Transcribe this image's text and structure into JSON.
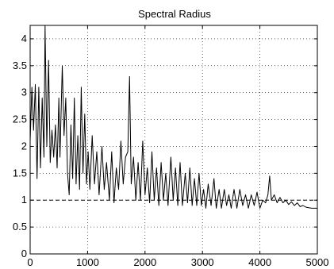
{
  "chart_data": {
    "type": "line",
    "title": "Spectral Radius",
    "xlabel": "",
    "ylabel": "",
    "xlim": [
      0,
      5000
    ],
    "ylim": [
      0,
      4.25
    ],
    "x_ticks": [
      0,
      1000,
      2000,
      3000,
      4000,
      5000
    ],
    "x_tick_labels": [
      "0",
      "1000",
      "2000",
      "3000",
      "4000",
      "5000"
    ],
    "y_ticks": [
      0,
      0.5,
      1,
      1.5,
      2,
      2.5,
      3,
      3.5,
      4
    ],
    "y_tick_labels": [
      "0",
      "0.5",
      "1",
      "1.5",
      "2",
      "2.5",
      "3",
      "3.5",
      "4"
    ],
    "grid": true,
    "grid_style": "dotted",
    "reference_line": {
      "y": 1,
      "style": "dashed",
      "color": "#000000"
    },
    "series": [
      {
        "color": "#000000",
        "points": [
          [
            0,
            2.1
          ],
          [
            30,
            3.1
          ],
          [
            60,
            2.3
          ],
          [
            90,
            3.15
          ],
          [
            120,
            1.4
          ],
          [
            150,
            3.1
          ],
          [
            180,
            1.6
          ],
          [
            210,
            2.9
          ],
          [
            240,
            1.8
          ],
          [
            260,
            4.25
          ],
          [
            290,
            2.0
          ],
          [
            320,
            3.6
          ],
          [
            350,
            1.7
          ],
          [
            380,
            2.3
          ],
          [
            410,
            1.8
          ],
          [
            440,
            2.4
          ],
          [
            470,
            1.6
          ],
          [
            500,
            2.9
          ],
          [
            520,
            1.8
          ],
          [
            560,
            3.5
          ],
          [
            590,
            2.2
          ],
          [
            620,
            2.9
          ],
          [
            650,
            1.5
          ],
          [
            680,
            1.1
          ],
          [
            710,
            2.4
          ],
          [
            740,
            1.4
          ],
          [
            770,
            2.9
          ],
          [
            800,
            1.3
          ],
          [
            830,
            2.2
          ],
          [
            860,
            1.2
          ],
          [
            890,
            3.1
          ],
          [
            920,
            1.5
          ],
          [
            950,
            2.6
          ],
          [
            980,
            1.3
          ],
          [
            1010,
            1.9
          ],
          [
            1040,
            1.2
          ],
          [
            1080,
            2.2
          ],
          [
            1120,
            1.3
          ],
          [
            1160,
            1.9
          ],
          [
            1200,
            1.1
          ],
          [
            1250,
            2.0
          ],
          [
            1290,
            1.2
          ],
          [
            1330,
            1.7
          ],
          [
            1380,
            1.0
          ],
          [
            1420,
            1.9
          ],
          [
            1460,
            0.95
          ],
          [
            1500,
            1.6
          ],
          [
            1540,
            1.2
          ],
          [
            1580,
            2.1
          ],
          [
            1620,
            1.3
          ],
          [
            1660,
            1.8
          ],
          [
            1700,
            1.9
          ],
          [
            1730,
            3.3
          ],
          [
            1760,
            1.3
          ],
          [
            1800,
            1.8
          ],
          [
            1840,
            1.0
          ],
          [
            1880,
            1.7
          ],
          [
            1920,
            1.0
          ],
          [
            1960,
            2.1
          ],
          [
            2000,
            1.1
          ],
          [
            2040,
            1.6
          ],
          [
            2080,
            0.95
          ],
          [
            2120,
            1.9
          ],
          [
            2160,
            1.0
          ],
          [
            2200,
            1.6
          ],
          [
            2240,
            0.9
          ],
          [
            2280,
            1.7
          ],
          [
            2320,
            1.0
          ],
          [
            2360,
            1.5
          ],
          [
            2400,
            0.9
          ],
          [
            2450,
            1.8
          ],
          [
            2490,
            1.0
          ],
          [
            2530,
            1.6
          ],
          [
            2570,
            0.9
          ],
          [
            2610,
            1.7
          ],
          [
            2650,
            0.9
          ],
          [
            2700,
            1.5
          ],
          [
            2740,
            0.95
          ],
          [
            2780,
            1.6
          ],
          [
            2820,
            0.9
          ],
          [
            2860,
            1.4
          ],
          [
            2900,
            0.9
          ],
          [
            2940,
            1.5
          ],
          [
            2980,
            0.9
          ],
          [
            3020,
            1.2
          ],
          [
            3060,
            0.85
          ],
          [
            3100,
            1.3
          ],
          [
            3150,
            0.9
          ],
          [
            3200,
            1.4
          ],
          [
            3240,
            0.85
          ],
          [
            3290,
            1.2
          ],
          [
            3330,
            0.85
          ],
          [
            3380,
            1.2
          ],
          [
            3420,
            0.9
          ],
          [
            3460,
            1.1
          ],
          [
            3500,
            0.85
          ],
          [
            3550,
            1.2
          ],
          [
            3600,
            0.85
          ],
          [
            3650,
            1.2
          ],
          [
            3700,
            0.9
          ],
          [
            3750,
            1.1
          ],
          [
            3800,
            0.85
          ],
          [
            3850,
            1.1
          ],
          [
            3900,
            0.9
          ],
          [
            3950,
            1.15
          ],
          [
            4000,
            0.85
          ],
          [
            4050,
            1.0
          ],
          [
            4100,
            0.95
          ],
          [
            4140,
            1.1
          ],
          [
            4170,
            1.45
          ],
          [
            4200,
            1.0
          ],
          [
            4250,
            1.1
          ],
          [
            4300,
            0.95
          ],
          [
            4350,
            1.05
          ],
          [
            4400,
            0.95
          ],
          [
            4450,
            1.0
          ],
          [
            4500,
            0.92
          ],
          [
            4550,
            0.97
          ],
          [
            4600,
            0.9
          ],
          [
            4650,
            0.95
          ],
          [
            4700,
            0.88
          ],
          [
            4750,
            0.9
          ],
          [
            4800,
            0.87
          ],
          [
            4850,
            0.86
          ],
          [
            4900,
            0.85
          ],
          [
            4950,
            0.85
          ],
          [
            5000,
            0.85
          ]
        ]
      }
    ]
  }
}
